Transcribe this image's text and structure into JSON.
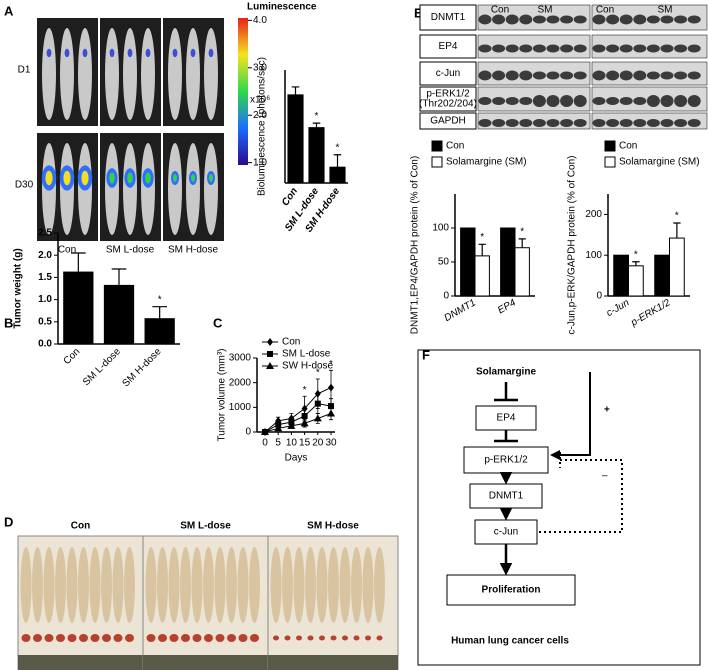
{
  "panel_labels": [
    "A",
    "B",
    "C",
    "D",
    "E",
    "F"
  ],
  "imaging": {
    "colorbar_title": "Luminescence",
    "colorbar_lim": [
      0.95,
      4.05
    ],
    "colorbar_ticks": [
      {
        "value": 4,
        "label": "4.0"
      },
      {
        "value": 3,
        "label": "3.0"
      },
      {
        "value": 2,
        "label": "2.0"
      },
      {
        "value": 1,
        "label": "1.0"
      }
    ],
    "colorbar_unit": "x10⁶",
    "rows": [
      "D1",
      "D30"
    ],
    "groups": [
      "Con",
      "SM L-dose",
      "SM H-dose"
    ]
  },
  "western_blot": {
    "lanes": [
      "Con",
      "SM",
      "Con",
      "SM"
    ],
    "proteins": [
      {
        "name": "DNMT1"
      },
      {
        "name": "EP4"
      },
      {
        "name": "c-Jun"
      },
      {
        "name": "p-ERK1/2",
        "site": "(Thr202/204)"
      },
      {
        "name": "GAPDH"
      }
    ]
  },
  "tumor_photos": {
    "groups": [
      "Con",
      "SM L-dose",
      "SM H-dose"
    ]
  },
  "pathway": {
    "nodes": [
      "Solamargine",
      "EP4",
      "p-ERK1/2",
      "DNMT1",
      "c-Jun",
      "Proliferation"
    ],
    "caption": "Human lung cancer cells",
    "signs": [
      "+",
      "–"
    ]
  },
  "chart_data": [
    {
      "type": "bar",
      "ylabel": "Bioluminescence (photons/sec)",
      "categories": [
        "Con",
        "SM L-dose",
        "SM H-dose"
      ],
      "values": [
        78,
        49,
        14
      ],
      "errors": [
        7,
        4,
        11
      ],
      "significance": [
        null,
        "*",
        "*"
      ],
      "color": "#000000",
      "ylim": [
        0,
        100
      ]
    },
    {
      "type": "bar",
      "ylabel": "Tumor weight (g)",
      "categories": [
        "Con",
        "SM L-dose",
        "SM H-dose"
      ],
      "values": [
        1.62,
        1.32,
        0.57
      ],
      "errors": [
        0.43,
        0.37,
        0.27
      ],
      "significance": [
        null,
        null,
        "*"
      ],
      "color": "#000000",
      "ylim": [
        0,
        2.5
      ],
      "yticks": [
        {
          "value": 0,
          "label": "0.0"
        },
        0.5,
        {
          "value": 1,
          "label": "1.0"
        },
        1.5,
        {
          "value": 2,
          "label": "2.0"
        },
        2.5
      ]
    },
    {
      "type": "line",
      "ylabel": "Tumor volume (mm³)",
      "xlabel": "Days",
      "categories": [
        "0",
        "5",
        "10",
        "15",
        "20",
        "30"
      ],
      "series": [
        {
          "name": "Con",
          "marker": "diamond",
          "values": [
            0,
            450,
            550,
            950,
            1550,
            1800
          ],
          "errors": [
            0,
            150,
            200,
            500,
            600,
            700
          ]
        },
        {
          "name": "SM L-dose",
          "marker": "square",
          "values": [
            0,
            300,
            400,
            650,
            1150,
            1050
          ],
          "errors": [
            0,
            120,
            150,
            250,
            400,
            300
          ]
        },
        {
          "name": "SW H-dose",
          "marker": "triangle",
          "values": [
            0,
            150,
            250,
            350,
            550,
            750
          ],
          "errors": [
            0,
            80,
            100,
            150,
            200,
            250
          ]
        }
      ],
      "significance": [
        null,
        null,
        null,
        "*",
        "*",
        "*"
      ],
      "color": "#000000",
      "ylim": [
        0,
        3000
      ],
      "yticks": [
        0,
        1000,
        2000,
        3000
      ]
    },
    {
      "type": "bar",
      "ylabel": "DNMT1,EP4/GAPDH protein (% of Con)",
      "categories": [
        "DNMT1",
        "EP4"
      ],
      "series": [
        {
          "name": "Con",
          "color": "#000000",
          "values": [
            100,
            100
          ]
        },
        {
          "name": "Solamargine (SM)",
          "color": "#ffffff",
          "values": [
            59,
            71
          ],
          "errors": [
            17,
            13
          ],
          "significance": [
            "*",
            "*"
          ]
        }
      ],
      "ylim": [
        0,
        150
      ],
      "yticks": [
        0,
        50,
        100
      ]
    },
    {
      "type": "bar",
      "ylabel": "c-Jun,p-ERK/GAPDH protein (% of Con)",
      "categories": [
        "c-Jun",
        "p-ERK1/2"
      ],
      "series": [
        {
          "name": "Con",
          "color": "#000000",
          "values": [
            100,
            100
          ]
        },
        {
          "name": "Solamargine (SM)",
          "color": "#ffffff",
          "values": [
            74,
            142
          ],
          "errors": [
            10,
            37
          ],
          "significance": [
            "*",
            "*"
          ]
        }
      ],
      "ylim": [
        0,
        250
      ],
      "yticks": [
        0,
        100,
        200
      ]
    }
  ]
}
